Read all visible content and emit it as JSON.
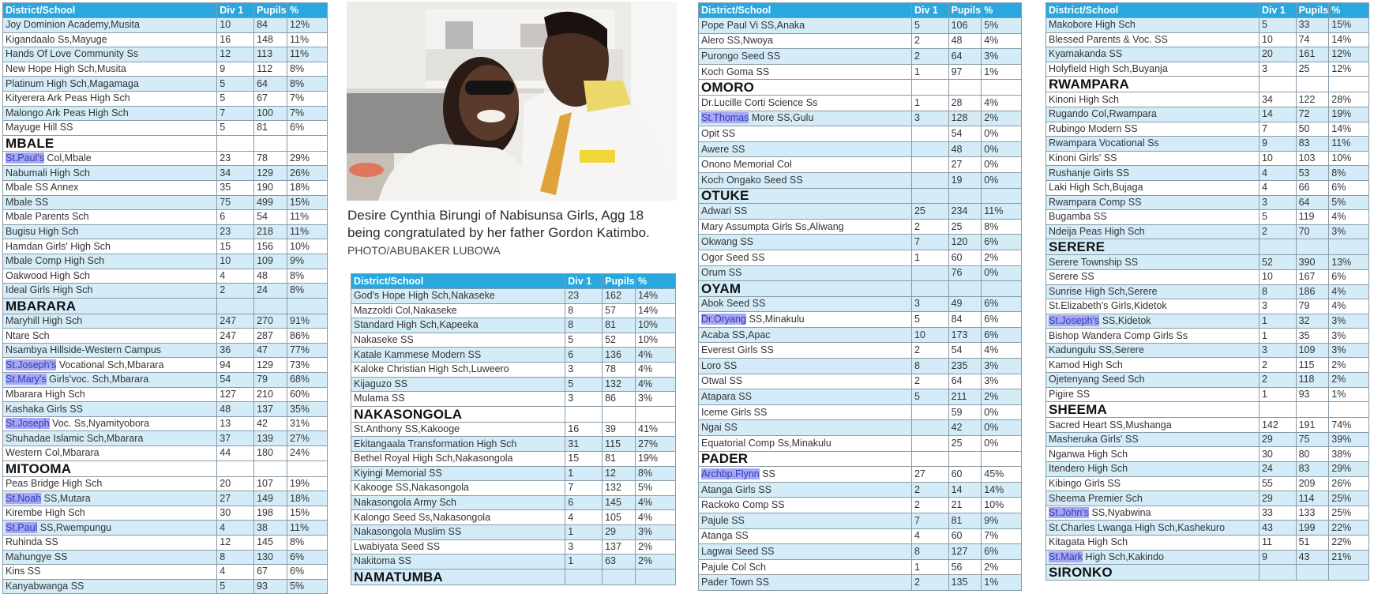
{
  "columns": {
    "school": "District/School",
    "div1": "Div 1",
    "pupils": "Pupils",
    "pct": "%"
  },
  "caption": {
    "text": "Desire Cynthia Birungi of Nabisunsa Girls,  Agg 18 being congratulated by her father Gordon Katimbo.",
    "credit": "PHOTO/ABUBAKER LUBOWA"
  },
  "colors": {
    "header": "#2aa7de",
    "row_alt": "#d4ecf8",
    "highlight": "#a9a7f3"
  },
  "tables": [
    {
      "rows": [
        {
          "name": "Joy Dominion Academy,Musita",
          "div": "10",
          "pupils": "84",
          "pct": "12%"
        },
        {
          "name": "Kigandaalo Ss,Mayuge",
          "div": "16",
          "pupils": "148",
          "pct": "11%"
        },
        {
          "name": "Hands Of Love Community Ss",
          "div": "12",
          "pupils": "113",
          "pct": "11%"
        },
        {
          "name": "New Hope High Sch,Musita",
          "div": "9",
          "pupils": "112",
          "pct": "8%"
        },
        {
          "name": "Platinum High Sch,Magamaga",
          "div": "5",
          "pupils": "64",
          "pct": "8%"
        },
        {
          "name": "Kityerera Ark Peas High Sch",
          "div": "5",
          "pupils": "67",
          "pct": "7%"
        },
        {
          "name": "Malongo Ark Peas High Sch",
          "div": "7",
          "pupils": "100",
          "pct": "7%"
        },
        {
          "name": "Mayuge Hill SS",
          "div": "5",
          "pupils": "81",
          "pct": "6%"
        },
        {
          "district": "MBALE"
        },
        {
          "hl": "St.Paul's",
          "name": " Col,Mbale",
          "div": "23",
          "pupils": "78",
          "pct": "29%"
        },
        {
          "name": "Nabumali High Sch",
          "div": "34",
          "pupils": "129",
          "pct": "26%"
        },
        {
          "name": "Mbale SS Annex",
          "div": "35",
          "pupils": "190",
          "pct": "18%"
        },
        {
          "name": "Mbale SS",
          "div": "75",
          "pupils": "499",
          "pct": "15%"
        },
        {
          "name": "Mbale Parents Sch",
          "div": "6",
          "pupils": "54",
          "pct": "11%"
        },
        {
          "name": "Bugisu High Sch",
          "div": "23",
          "pupils": "218",
          "pct": "11%"
        },
        {
          "name": "Hamdan Girls' High Sch",
          "div": "15",
          "pupils": "156",
          "pct": "10%"
        },
        {
          "name": "Mbale Comp High Sch",
          "div": "10",
          "pupils": "109",
          "pct": "9%"
        },
        {
          "name": "Oakwood High Sch",
          "div": "4",
          "pupils": "48",
          "pct": "8%"
        },
        {
          "name": "Ideal Girls High Sch",
          "div": "2",
          "pupils": "24",
          "pct": "8%"
        },
        {
          "district": "MBARARA"
        },
        {
          "name": "Maryhill High Sch",
          "div": "247",
          "pupils": "270",
          "pct": "91%"
        },
        {
          "name": "Ntare Sch",
          "div": "247",
          "pupils": "287",
          "pct": "86%"
        },
        {
          "name": "Nsambya Hillside-Western Campus",
          "div": "36",
          "pupils": "47",
          "pct": "77%"
        },
        {
          "hl": "St.Joseph's",
          "name": " Vocational Sch,Mbarara",
          "div": "94",
          "pupils": "129",
          "pct": "73%"
        },
        {
          "hl": "St.Mary's",
          "name": " Girls'voc. Sch,Mbarara",
          "div": "54",
          "pupils": "79",
          "pct": "68%"
        },
        {
          "name": "Mbarara High Sch",
          "div": "127",
          "pupils": "210",
          "pct": "60%"
        },
        {
          "name": "Kashaka Girls SS",
          "div": "48",
          "pupils": "137",
          "pct": "35%"
        },
        {
          "hl": "St.Joseph",
          "name": " Voc. Ss,Nyamityobora",
          "div": "13",
          "pupils": "42",
          "pct": "31%"
        },
        {
          "name": "Shuhadae Islamic Sch,Mbarara",
          "div": "37",
          "pupils": "139",
          "pct": "27%"
        },
        {
          "name": "Western Col,Mbarara",
          "div": "44",
          "pupils": "180",
          "pct": "24%"
        },
        {
          "district": "MITOOMA"
        },
        {
          "name": "Peas Bridge  High Sch",
          "div": "20",
          "pupils": "107",
          "pct": "19%"
        },
        {
          "hl": "St.Noah",
          "name": " SS,Mutara",
          "div": "27",
          "pupils": "149",
          "pct": "18%"
        },
        {
          "name": "Kirembe High Sch",
          "div": "30",
          "pupils": "198",
          "pct": "15%"
        },
        {
          "hl": "St.Paul",
          "name": " SS,Rwempungu",
          "div": "4",
          "pupils": "38",
          "pct": "11%"
        },
        {
          "name": "Ruhinda SS",
          "div": "12",
          "pupils": "145",
          "pct": "8%"
        },
        {
          "name": "Mahungye SS",
          "div": "8",
          "pupils": "130",
          "pct": "6%"
        },
        {
          "name": "Kins SS",
          "div": "4",
          "pupils": "67",
          "pct": "6%"
        },
        {
          "name": "Kanyabwanga SS",
          "div": "5",
          "pupils": "93",
          "pct": "5%"
        }
      ]
    },
    {
      "rows": [
        {
          "name": "God's Hope High Sch,Nakaseke",
          "div": "23",
          "pupils": "162",
          "pct": "14%"
        },
        {
          "name": "Mazzoldi Col,Nakaseke",
          "div": "8",
          "pupils": "57",
          "pct": "14%"
        },
        {
          "name": "Standard High Sch,Kapeeka",
          "div": "8",
          "pupils": "81",
          "pct": "10%"
        },
        {
          "name": "Nakaseke SS",
          "div": "5",
          "pupils": "52",
          "pct": "10%"
        },
        {
          "name": "Katale Kammese Modern SS",
          "div": "6",
          "pupils": "136",
          "pct": "4%"
        },
        {
          "name": "Kaloke Christian High Sch,Luweero",
          "div": "3",
          "pupils": "78",
          "pct": "4%"
        },
        {
          "name": "Kijaguzo SS",
          "div": "5",
          "pupils": "132",
          "pct": "4%"
        },
        {
          "name": "Mulama SS",
          "div": "3",
          "pupils": "86",
          "pct": "3%"
        },
        {
          "district": "NAKASONGOLA"
        },
        {
          "name": "St.Anthony SS,Kakooge",
          "div": "16",
          "pupils": "39",
          "pct": "41%"
        },
        {
          "name": "Ekitangaala Transformation High Sch",
          "div": "31",
          "pupils": "115",
          "pct": "27%"
        },
        {
          "name": "Bethel Royal High Sch,Nakasongola",
          "div": "15",
          "pupils": "81",
          "pct": "19%"
        },
        {
          "name": "Kiyingi Memorial SS",
          "div": "1",
          "pupils": "12",
          "pct": "8%"
        },
        {
          "name": "Kakooge SS,Nakasongola",
          "div": "7",
          "pupils": "132",
          "pct": "5%"
        },
        {
          "name": "Nakasongola Army Sch",
          "div": "6",
          "pupils": "145",
          "pct": "4%"
        },
        {
          "name": "Kalongo Seed Ss,Nakasongola",
          "div": "4",
          "pupils": "105",
          "pct": "4%"
        },
        {
          "name": "Nakasongola Muslim SS",
          "div": "1",
          "pupils": "29",
          "pct": "3%"
        },
        {
          "name": "Lwabiyata Seed SS",
          "div": "3",
          "pupils": "137",
          "pct": "2%"
        },
        {
          "name": "Nakitoma SS",
          "div": "1",
          "pupils": "63",
          "pct": "2%"
        },
        {
          "district": "NAMATUMBA"
        }
      ]
    },
    {
      "rows": [
        {
          "name": "Pope Paul Vi SS,Anaka",
          "div": "5",
          "pupils": "106",
          "pct": "5%"
        },
        {
          "name": "Alero SS,Nwoya",
          "div": "2",
          "pupils": "48",
          "pct": "4%"
        },
        {
          "name": "Purongo Seed SS",
          "div": "2",
          "pupils": "64",
          "pct": "3%"
        },
        {
          "name": "Koch Goma SS",
          "div": "1",
          "pupils": "97",
          "pct": "1%"
        },
        {
          "district": "OMORO"
        },
        {
          "name": "Dr.Lucille Corti Science Ss",
          "div": "1",
          "pupils": "28",
          "pct": "4%"
        },
        {
          "hl": "St.Thomas",
          "name": " More SS,Gulu",
          "div": "3",
          "pupils": "128",
          "pct": "2%"
        },
        {
          "name": "Opit SS",
          "div": "",
          "pupils": "54",
          "pct": "0%"
        },
        {
          "name": "Awere SS",
          "div": "",
          "pupils": "48",
          "pct": "0%"
        },
        {
          "name": "Onono Memorial Col",
          "div": "",
          "pupils": "27",
          "pct": "0%"
        },
        {
          "name": "Koch Ongako Seed SS",
          "div": "",
          "pupils": "19",
          "pct": "0%"
        },
        {
          "district": "OTUKE"
        },
        {
          "name": "Adwari SS",
          "div": "25",
          "pupils": "234",
          "pct": "11%"
        },
        {
          "name": "Mary Assumpta Girls Ss,Aliwang",
          "div": "2",
          "pupils": "25",
          "pct": "8%"
        },
        {
          "name": "Okwang SS",
          "div": "7",
          "pupils": "120",
          "pct": "6%"
        },
        {
          "name": "Ogor Seed SS",
          "div": "1",
          "pupils": "60",
          "pct": "2%"
        },
        {
          "name": "Orum SS",
          "div": "",
          "pupils": "76",
          "pct": "0%"
        },
        {
          "district": "OYAM"
        },
        {
          "name": "Abok Seed SS",
          "div": "3",
          "pupils": "49",
          "pct": "6%"
        },
        {
          "hl": "Dr.Oryang",
          "name": " SS,Minakulu",
          "div": "5",
          "pupils": "84",
          "pct": "6%"
        },
        {
          "name": "Acaba SS,Apac",
          "div": "10",
          "pupils": "173",
          "pct": "6%"
        },
        {
          "name": "Everest Girls SS",
          "div": "2",
          "pupils": "54",
          "pct": "4%"
        },
        {
          "name": "Loro SS",
          "div": "8",
          "pupils": "235",
          "pct": "3%"
        },
        {
          "name": "Otwal SS",
          "div": "2",
          "pupils": "64",
          "pct": "3%"
        },
        {
          "name": "Atapara SS",
          "div": "5",
          "pupils": "211",
          "pct": "2%"
        },
        {
          "name": "Iceme Girls SS",
          "div": "",
          "pupils": "59",
          "pct": "0%"
        },
        {
          "name": "Ngai SS",
          "div": "",
          "pupils": "42",
          "pct": "0%"
        },
        {
          "name": "Equatorial Comp Ss,Minakulu",
          "div": "",
          "pupils": "25",
          "pct": "0%"
        },
        {
          "district": "PADER"
        },
        {
          "hl": "Archbp.Flynn",
          "name": " SS",
          "div": "27",
          "pupils": "60",
          "pct": "45%"
        },
        {
          "name": "Atanga Girls SS",
          "div": "2",
          "pupils": "14",
          "pct": "14%"
        },
        {
          "name": "Rackoko Comp SS",
          "div": "2",
          "pupils": "21",
          "pct": "10%"
        },
        {
          "name": "Pajule SS",
          "div": "7",
          "pupils": "81",
          "pct": "9%"
        },
        {
          "name": "Atanga SS",
          "div": "4",
          "pupils": "60",
          "pct": "7%"
        },
        {
          "name": "Lagwai Seed SS",
          "div": "8",
          "pupils": "127",
          "pct": "6%"
        },
        {
          "name": "Pajule Col Sch",
          "div": "1",
          "pupils": "56",
          "pct": "2%"
        },
        {
          "name": "Pader Town SS",
          "div": "2",
          "pupils": "135",
          "pct": "1%"
        }
      ]
    },
    {
      "rows": [
        {
          "name": "Makobore High Sch",
          "div": "5",
          "pupils": "33",
          "pct": "15%"
        },
        {
          "name": "Blessed Parents & Voc. SS",
          "div": "10",
          "pupils": "74",
          "pct": "14%"
        },
        {
          "name": "Kyamakanda SS",
          "div": "20",
          "pupils": "161",
          "pct": "12%"
        },
        {
          "name": "Holyfield High Sch,Buyanja",
          "div": "3",
          "pupils": "25",
          "pct": "12%"
        },
        {
          "district": "RWAMPARA"
        },
        {
          "name": "Kinoni High Sch",
          "div": "34",
          "pupils": "122",
          "pct": "28%"
        },
        {
          "name": "Rugando Col,Rwampara",
          "div": "14",
          "pupils": "72",
          "pct": "19%"
        },
        {
          "name": "Rubingo Modern SS",
          "div": "7",
          "pupils": "50",
          "pct": "14%"
        },
        {
          "name": "Rwampara Vocational Ss",
          "div": "9",
          "pupils": "83",
          "pct": "11%"
        },
        {
          "name": "Kinoni Girls' SS",
          "div": "10",
          "pupils": "103",
          "pct": "10%"
        },
        {
          "name": "Rushanje Girls SS",
          "div": "4",
          "pupils": "53",
          "pct": "8%"
        },
        {
          "name": "Laki High Sch,Bujaga",
          "div": "4",
          "pupils": "66",
          "pct": "6%"
        },
        {
          "name": "Rwampara Comp SS",
          "div": "3",
          "pupils": "64",
          "pct": "5%"
        },
        {
          "name": "Bugamba SS",
          "div": "5",
          "pupils": "119",
          "pct": "4%"
        },
        {
          "name": "Ndeija Peas High Sch",
          "div": "2",
          "pupils": "70",
          "pct": "3%"
        },
        {
          "district": "SERERE"
        },
        {
          "name": "Serere Township SS",
          "div": "52",
          "pupils": "390",
          "pct": "13%"
        },
        {
          "name": "Serere SS",
          "div": "10",
          "pupils": "167",
          "pct": "6%"
        },
        {
          "name": "Sunrise High Sch,Serere",
          "div": "8",
          "pupils": "186",
          "pct": "4%"
        },
        {
          "name": "St.Elizabeth's Girls,Kidetok",
          "div": "3",
          "pupils": "79",
          "pct": "4%"
        },
        {
          "hl": "St.Joseph's",
          "name": " SS,Kidetok",
          "div": "1",
          "pupils": "32",
          "pct": "3%"
        },
        {
          "name": "Bishop Wandera Comp Girls Ss",
          "div": "1",
          "pupils": "35",
          "pct": "3%"
        },
        {
          "name": "Kadungulu SS,Serere",
          "div": "3",
          "pupils": "109",
          "pct": "3%"
        },
        {
          "name": "Kamod High Sch",
          "div": "2",
          "pupils": "115",
          "pct": "2%"
        },
        {
          "name": "Ojetenyang Seed Sch",
          "div": "2",
          "pupils": "118",
          "pct": "2%"
        },
        {
          "name": "Pigire SS",
          "div": "1",
          "pupils": "93",
          "pct": "1%"
        },
        {
          "district": "SHEEMA"
        },
        {
          "name": "Sacred Heart SS,Mushanga",
          "div": "142",
          "pupils": "191",
          "pct": "74%"
        },
        {
          "name": "Masheruka Girls' SS",
          "div": "29",
          "pupils": "75",
          "pct": "39%"
        },
        {
          "name": "Nganwa High Sch",
          "div": "30",
          "pupils": "80",
          "pct": "38%"
        },
        {
          "name": "Itendero High Sch",
          "div": "24",
          "pupils": "83",
          "pct": "29%"
        },
        {
          "name": "Kibingo Girls SS",
          "div": "55",
          "pupils": "209",
          "pct": "26%"
        },
        {
          "name": "Sheema Premier Sch",
          "div": "29",
          "pupils": "114",
          "pct": "25%"
        },
        {
          "hl": "St.John's",
          "name": " SS,Nyabwina",
          "div": "33",
          "pupils": "133",
          "pct": "25%"
        },
        {
          "name": "St.Charles Lwanga High Sch,Kashekuro",
          "div": "43",
          "pupils": "199",
          "pct": "22%"
        },
        {
          "name": "Kitagata High Sch",
          "div": "11",
          "pupils": "51",
          "pct": "22%"
        },
        {
          "hl": "St.Mark",
          "name": " High Sch,Kakindo",
          "div": "9",
          "pupils": "43",
          "pct": "21%"
        },
        {
          "district": "SIRONKO"
        }
      ]
    }
  ]
}
